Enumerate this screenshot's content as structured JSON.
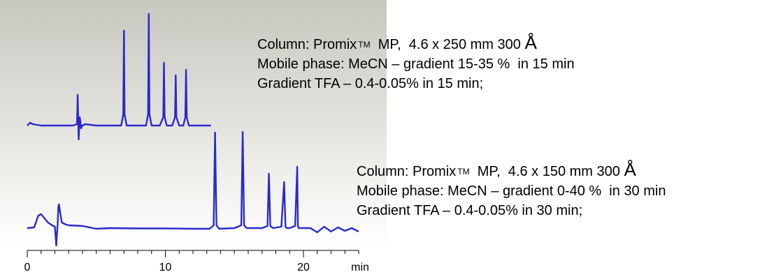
{
  "chart_data": {
    "type": "line",
    "x_unit": "min",
    "xlim": [
      0,
      24
    ],
    "x_ticks": [
      0,
      10,
      20
    ],
    "ylabel": "",
    "series": [
      {
        "key": "top",
        "color": "#2a2acc",
        "x": [
          0.0,
          0.2,
          0.4,
          1.0,
          2.0,
          3.0,
          3.3,
          3.6,
          3.65,
          3.72,
          3.8,
          3.85,
          3.9,
          4.0,
          4.2,
          5.0,
          6.0,
          6.8,
          6.95,
          7.0,
          7.05,
          7.2,
          8.0,
          8.6,
          8.75,
          8.8,
          8.85,
          9.0,
          9.6,
          9.85,
          9.9,
          9.95,
          10.1,
          10.5,
          10.7,
          10.75,
          10.8,
          11.0,
          11.3,
          11.45,
          11.5,
          11.55,
          11.7,
          12.0,
          13.3
        ],
        "y": [
          0,
          2,
          1,
          0,
          0,
          0,
          0,
          1,
          22,
          -10,
          6,
          3,
          -2,
          0,
          1,
          0,
          0,
          0,
          8,
          68,
          8,
          0,
          0,
          0,
          8,
          80,
          8,
          0,
          0,
          6,
          45,
          6,
          0,
          0,
          6,
          36,
          6,
          0,
          0,
          6,
          40,
          6,
          0,
          0,
          0
        ]
      },
      {
        "key": "bottom",
        "color": "#2a2acc",
        "x": [
          0.0,
          0.5,
          0.8,
          1.0,
          1.5,
          1.8,
          2.0,
          2.1,
          2.15,
          2.2,
          2.25,
          2.3,
          2.4,
          2.5,
          2.8,
          3.0,
          4.0,
          4.5,
          5.0,
          6.0,
          8.0,
          10.0,
          12.0,
          13.2,
          13.5,
          13.6,
          13.7,
          13.9,
          15.0,
          15.5,
          15.6,
          15.7,
          15.9,
          17.0,
          17.4,
          17.5,
          17.6,
          17.8,
          18.4,
          18.6,
          18.7,
          18.8,
          19.0,
          19.4,
          19.55,
          19.6,
          19.65,
          19.8,
          20.5,
          21.0,
          21.5,
          22.0,
          22.5,
          23.0,
          23.5,
          24.0
        ],
        "y": [
          0,
          1,
          18,
          20,
          8,
          4,
          2,
          -25,
          -8,
          6,
          30,
          34,
          20,
          8,
          5,
          4,
          3,
          1,
          -1,
          0,
          -0.5,
          -0.5,
          -1,
          -1,
          4,
          137,
          4,
          -1,
          0,
          4,
          138,
          4,
          0,
          0,
          3,
          78,
          3,
          0,
          2,
          66,
          2,
          0,
          0,
          3,
          88,
          3,
          0,
          0,
          0,
          -6,
          2,
          -5,
          1,
          -4,
          0,
          -5
        ]
      }
    ]
  },
  "annotations": {
    "top": {
      "line1_prefix": "Column: Promix",
      "line1_tm": "TM",
      "line1_mid": "  MP,  4.6 x 250 mm 300 ",
      "line1_unit": "Å",
      "line2": "Mobile phase: MeCN – gradient 15-35 %  in 15 min",
      "line3": "Gradient TFA – 0.4-0.05% in 15 min;"
    },
    "bottom": {
      "line1_prefix": "Column: Promix",
      "line1_tm": "TM",
      "line1_mid": "  MP,  4.6 x 150 mm 300 ",
      "line1_unit": "Å",
      "line2": "Mobile phase: MeCN – gradient 0-40 %  in 30 min",
      "line3": "Gradient TFA – 0.4-0.05% in 30 min;"
    }
  },
  "axis": {
    "tick_labels": [
      "0",
      "10",
      "20"
    ],
    "unit_label": "min"
  },
  "colors": {
    "trace": "#2a2acc",
    "background_gradient_top": "#c9c9c1",
    "background_gradient_bottom": "#ffffff"
  }
}
